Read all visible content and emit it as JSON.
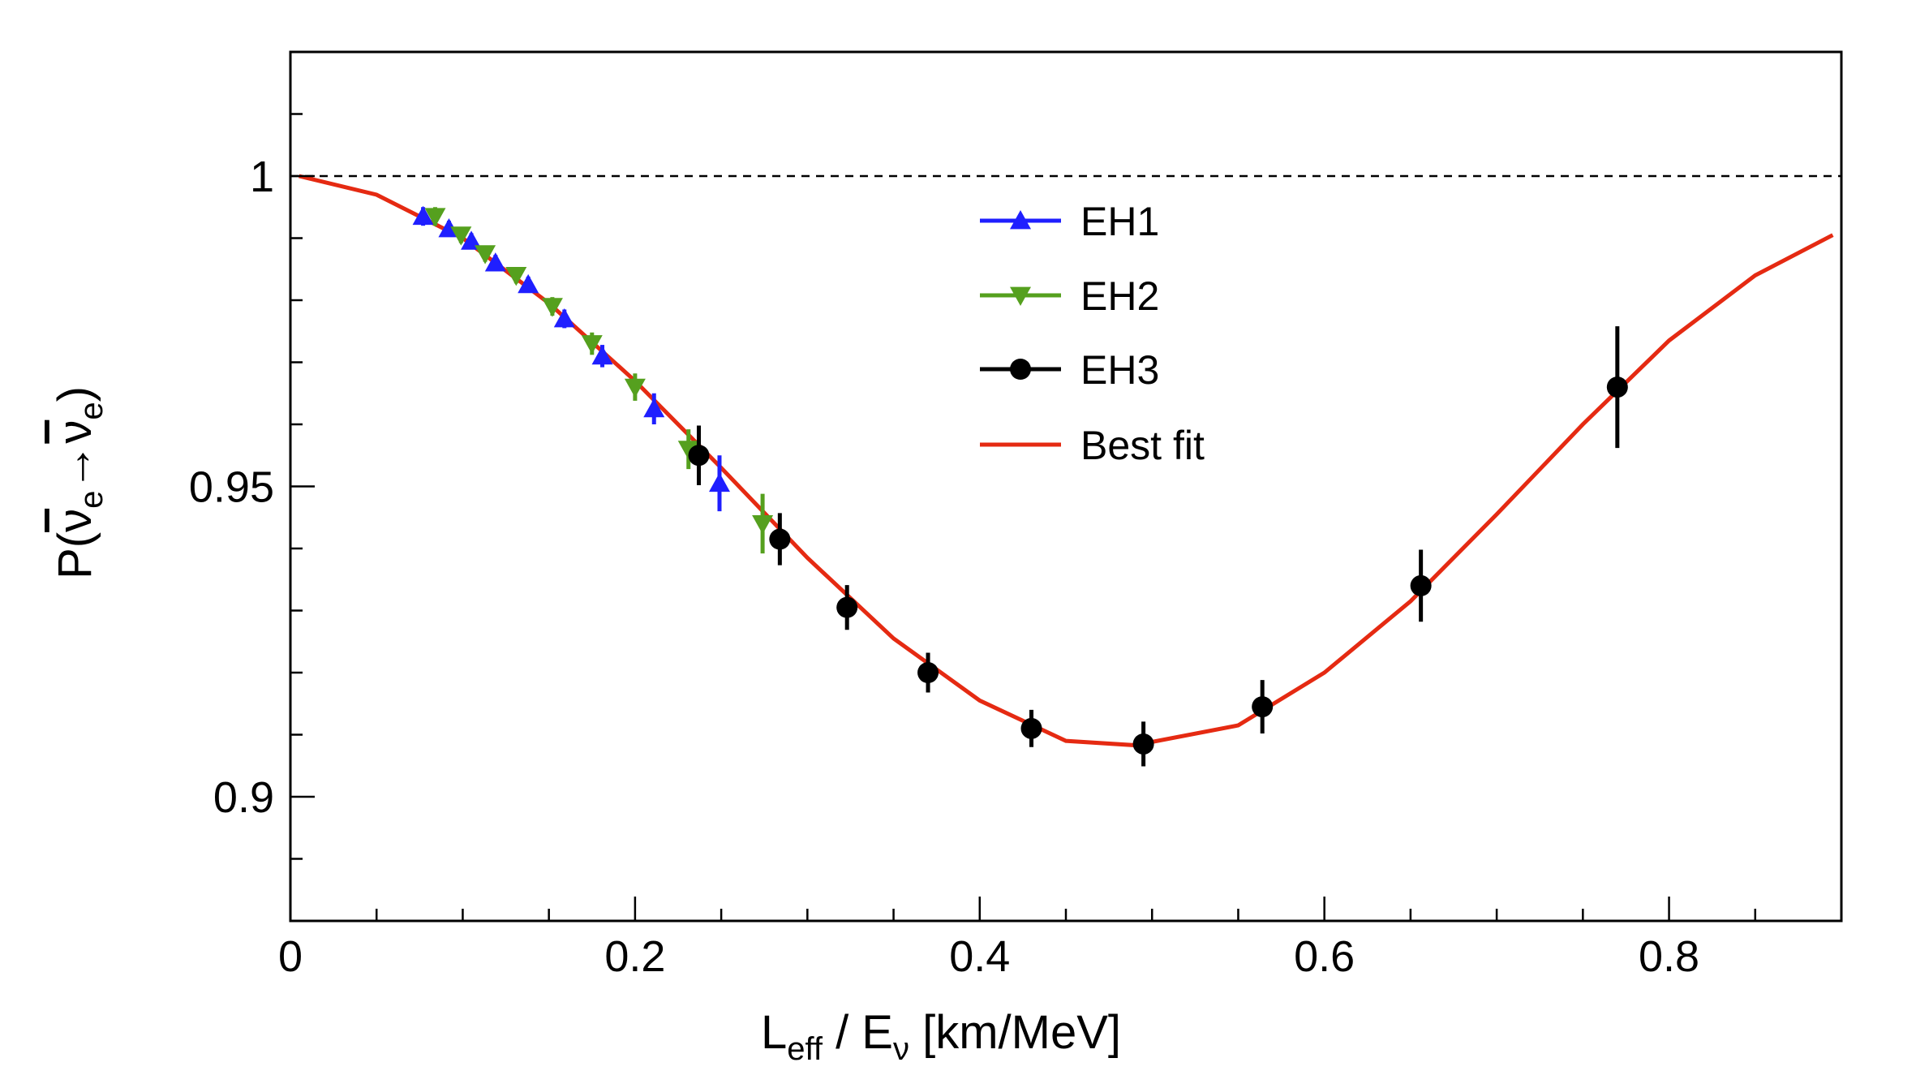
{
  "chart_data": {
    "type": "scatter",
    "title": "",
    "xlabel": {
      "main": "L",
      "sub1": "eff",
      "mid": " / E",
      "sub2": "ν",
      "tail": " [km/MeV]"
    },
    "ylabel": {
      "prefix": "P(",
      "nu1": "ν",
      "sub1": "e",
      "arrow": "→",
      "nu2": "ν",
      "sub2": "e",
      "suffix": ")"
    },
    "xlim": [
      0,
      0.9
    ],
    "ylim": [
      0.88,
      1.02
    ],
    "xticks": [
      0,
      0.2,
      0.4,
      0.6,
      0.8
    ],
    "xtick_labels": [
      "0",
      "0.2",
      "0.4",
      "0.6",
      "0.8"
    ],
    "yticks": [
      0.9,
      0.95,
      1.0
    ],
    "ytick_labels": [
      "0.9",
      "0.95",
      "1"
    ],
    "reference_line": {
      "y": 1.0,
      "style": "dashed"
    },
    "legend_position": "top-center",
    "series": [
      {
        "name": "EH1",
        "color": "#1f1fff",
        "marker": "triangle-up",
        "x": [
          0.077,
          0.092,
          0.105,
          0.119,
          0.138,
          0.159,
          0.181,
          0.211,
          0.249
        ],
        "y": [
          0.9935,
          0.9915,
          0.9895,
          0.986,
          0.9825,
          0.977,
          0.971,
          0.9625,
          0.9505
        ],
        "err": [
          0.0015,
          0.0013,
          0.0013,
          0.0013,
          0.0013,
          0.0015,
          0.0018,
          0.0025,
          0.0045
        ]
      },
      {
        "name": "EH2",
        "color": "#55a01e",
        "marker": "triangle-down",
        "x": [
          0.084,
          0.099,
          0.113,
          0.131,
          0.152,
          0.175,
          0.2,
          0.231,
          0.274
        ],
        "y": [
          0.9935,
          0.9905,
          0.9875,
          0.984,
          0.979,
          0.973,
          0.966,
          0.956,
          0.944
        ],
        "err": [
          0.0015,
          0.0013,
          0.0013,
          0.0013,
          0.0015,
          0.0018,
          0.0022,
          0.0032,
          0.0048
        ]
      },
      {
        "name": "EH3",
        "color": "#000000",
        "marker": "circle",
        "x": [
          0.237,
          0.284,
          0.323,
          0.37,
          0.43,
          0.495,
          0.564,
          0.656,
          0.77
        ],
        "y": [
          0.955,
          0.9415,
          0.9305,
          0.92,
          0.911,
          0.9085,
          0.9145,
          0.934,
          0.966
        ],
        "err": [
          0.0048,
          0.0042,
          0.0036,
          0.0032,
          0.003,
          0.0036,
          0.0043,
          0.0058,
          0.0098
        ]
      },
      {
        "name": "Best fit",
        "color": "#e52a12",
        "type": "line",
        "x": [
          0.005,
          0.05,
          0.1,
          0.15,
          0.2,
          0.25,
          0.3,
          0.35,
          0.4,
          0.45,
          0.49,
          0.55,
          0.6,
          0.65,
          0.7,
          0.75,
          0.8,
          0.85,
          0.895
        ],
        "y": [
          1.0,
          0.997,
          0.99,
          0.9795,
          0.967,
          0.953,
          0.9385,
          0.9255,
          0.9155,
          0.909,
          0.9083,
          0.9115,
          0.92,
          0.9315,
          0.9455,
          0.96,
          0.9735,
          0.984,
          0.9905
        ]
      }
    ]
  }
}
